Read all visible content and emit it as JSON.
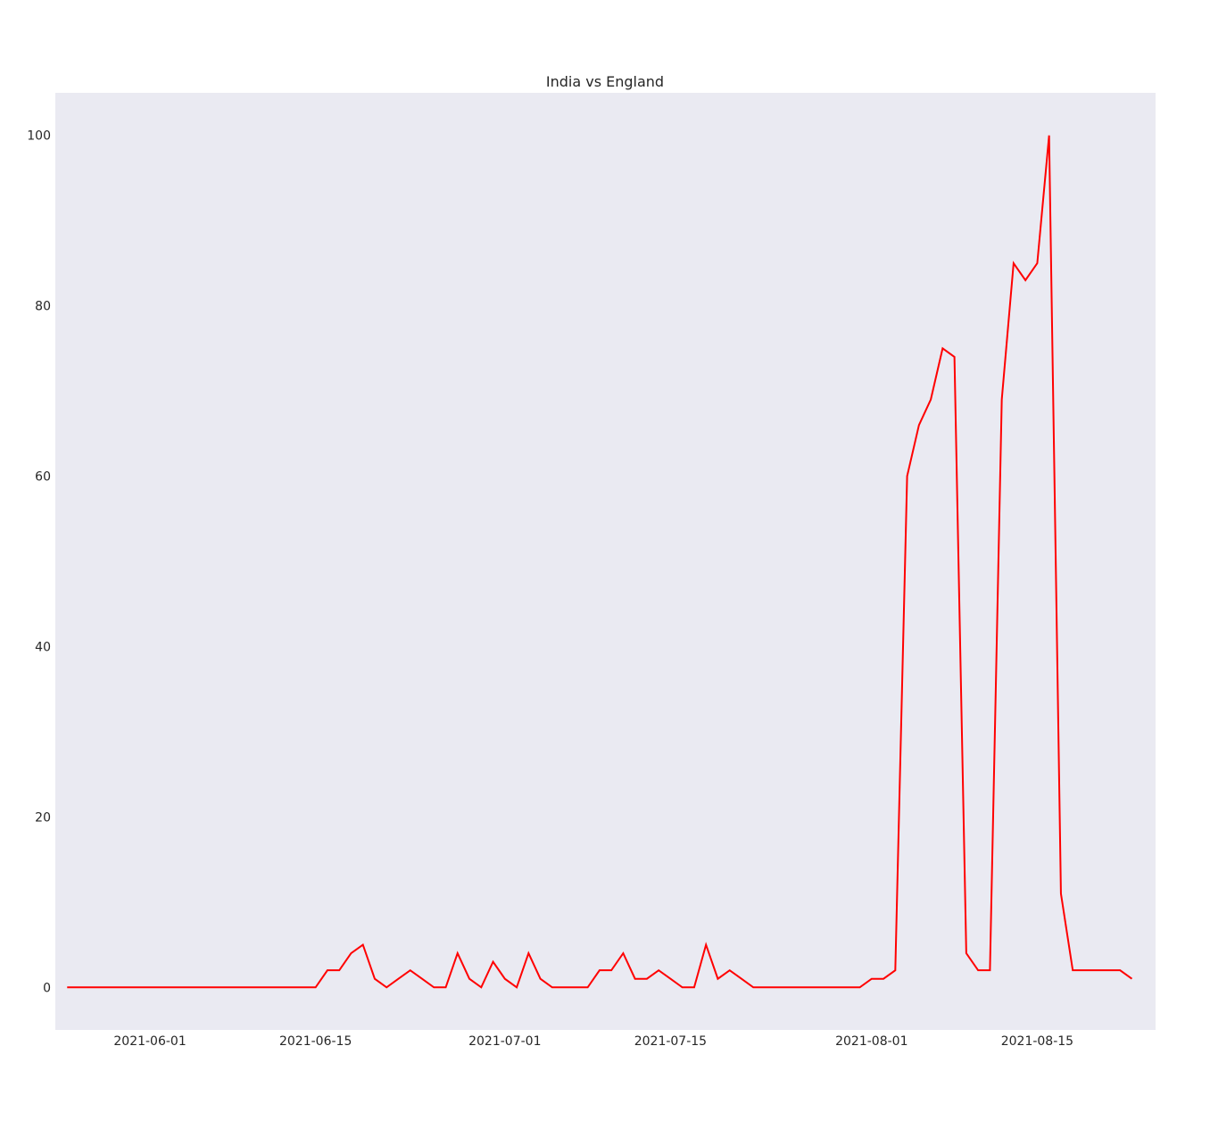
{
  "chart_data": {
    "type": "line",
    "title": "India vs England",
    "xlabel": "",
    "ylabel": "",
    "x_ticks": [
      "2021-06-01",
      "2021-06-15",
      "2021-07-01",
      "2021-07-15",
      "2021-08-01",
      "2021-08-15"
    ],
    "y_ticks": [
      "0",
      "20",
      "40",
      "60",
      "80",
      "100"
    ],
    "xlim": [
      "2021-05-24",
      "2021-08-25"
    ],
    "ylim": [
      -5,
      105
    ],
    "grid": false,
    "colors": {
      "line": "#ff0000",
      "plot_background": "#eaeaf2",
      "text": "#262626"
    },
    "series": [
      {
        "points": [
          [
            "2021-05-25",
            0
          ],
          [
            "2021-05-26",
            0
          ],
          [
            "2021-05-27",
            0
          ],
          [
            "2021-05-28",
            0
          ],
          [
            "2021-05-29",
            0
          ],
          [
            "2021-05-30",
            0
          ],
          [
            "2021-05-31",
            0
          ],
          [
            "2021-06-01",
            0
          ],
          [
            "2021-06-02",
            0
          ],
          [
            "2021-06-03",
            0
          ],
          [
            "2021-06-04",
            0
          ],
          [
            "2021-06-05",
            0
          ],
          [
            "2021-06-06",
            0
          ],
          [
            "2021-06-07",
            0
          ],
          [
            "2021-06-08",
            0
          ],
          [
            "2021-06-09",
            0
          ],
          [
            "2021-06-10",
            0
          ],
          [
            "2021-06-11",
            0
          ],
          [
            "2021-06-12",
            0
          ],
          [
            "2021-06-13",
            0
          ],
          [
            "2021-06-14",
            0
          ],
          [
            "2021-06-15",
            0
          ],
          [
            "2021-06-16",
            2
          ],
          [
            "2021-06-17",
            2
          ],
          [
            "2021-06-18",
            4
          ],
          [
            "2021-06-19",
            5
          ],
          [
            "2021-06-20",
            1
          ],
          [
            "2021-06-21",
            0
          ],
          [
            "2021-06-22",
            1
          ],
          [
            "2021-06-23",
            2
          ],
          [
            "2021-06-24",
            1
          ],
          [
            "2021-06-25",
            0
          ],
          [
            "2021-06-26",
            0
          ],
          [
            "2021-06-27",
            4
          ],
          [
            "2021-06-28",
            1
          ],
          [
            "2021-06-29",
            0
          ],
          [
            "2021-06-30",
            3
          ],
          [
            "2021-07-01",
            1
          ],
          [
            "2021-07-02",
            0
          ],
          [
            "2021-07-03",
            4
          ],
          [
            "2021-07-04",
            1
          ],
          [
            "2021-07-05",
            0
          ],
          [
            "2021-07-06",
            0
          ],
          [
            "2021-07-07",
            0
          ],
          [
            "2021-07-08",
            0
          ],
          [
            "2021-07-09",
            2
          ],
          [
            "2021-07-10",
            2
          ],
          [
            "2021-07-11",
            4
          ],
          [
            "2021-07-12",
            1
          ],
          [
            "2021-07-13",
            1
          ],
          [
            "2021-07-14",
            2
          ],
          [
            "2021-07-15",
            1
          ],
          [
            "2021-07-16",
            0
          ],
          [
            "2021-07-17",
            0
          ],
          [
            "2021-07-18",
            5
          ],
          [
            "2021-07-19",
            1
          ],
          [
            "2021-07-20",
            2
          ],
          [
            "2021-07-21",
            1
          ],
          [
            "2021-07-22",
            0
          ],
          [
            "2021-07-23",
            0
          ],
          [
            "2021-07-24",
            0
          ],
          [
            "2021-07-25",
            0
          ],
          [
            "2021-07-26",
            0
          ],
          [
            "2021-07-27",
            0
          ],
          [
            "2021-07-28",
            0
          ],
          [
            "2021-07-29",
            0
          ],
          [
            "2021-07-30",
            0
          ],
          [
            "2021-07-31",
            0
          ],
          [
            "2021-08-01",
            1
          ],
          [
            "2021-08-02",
            1
          ],
          [
            "2021-08-03",
            2
          ],
          [
            "2021-08-04",
            60
          ],
          [
            "2021-08-05",
            66
          ],
          [
            "2021-08-06",
            69
          ],
          [
            "2021-08-07",
            75
          ],
          [
            "2021-08-08",
            74
          ],
          [
            "2021-08-09",
            4
          ],
          [
            "2021-08-10",
            2
          ],
          [
            "2021-08-11",
            2
          ],
          [
            "2021-08-12",
            69
          ],
          [
            "2021-08-13",
            85
          ],
          [
            "2021-08-14",
            83
          ],
          [
            "2021-08-15",
            85
          ],
          [
            "2021-08-16",
            100
          ],
          [
            "2021-08-17",
            11
          ],
          [
            "2021-08-18",
            2
          ],
          [
            "2021-08-19",
            2
          ],
          [
            "2021-08-20",
            2
          ],
          [
            "2021-08-21",
            2
          ],
          [
            "2021-08-22",
            2
          ],
          [
            "2021-08-23",
            1
          ]
        ]
      }
    ]
  }
}
